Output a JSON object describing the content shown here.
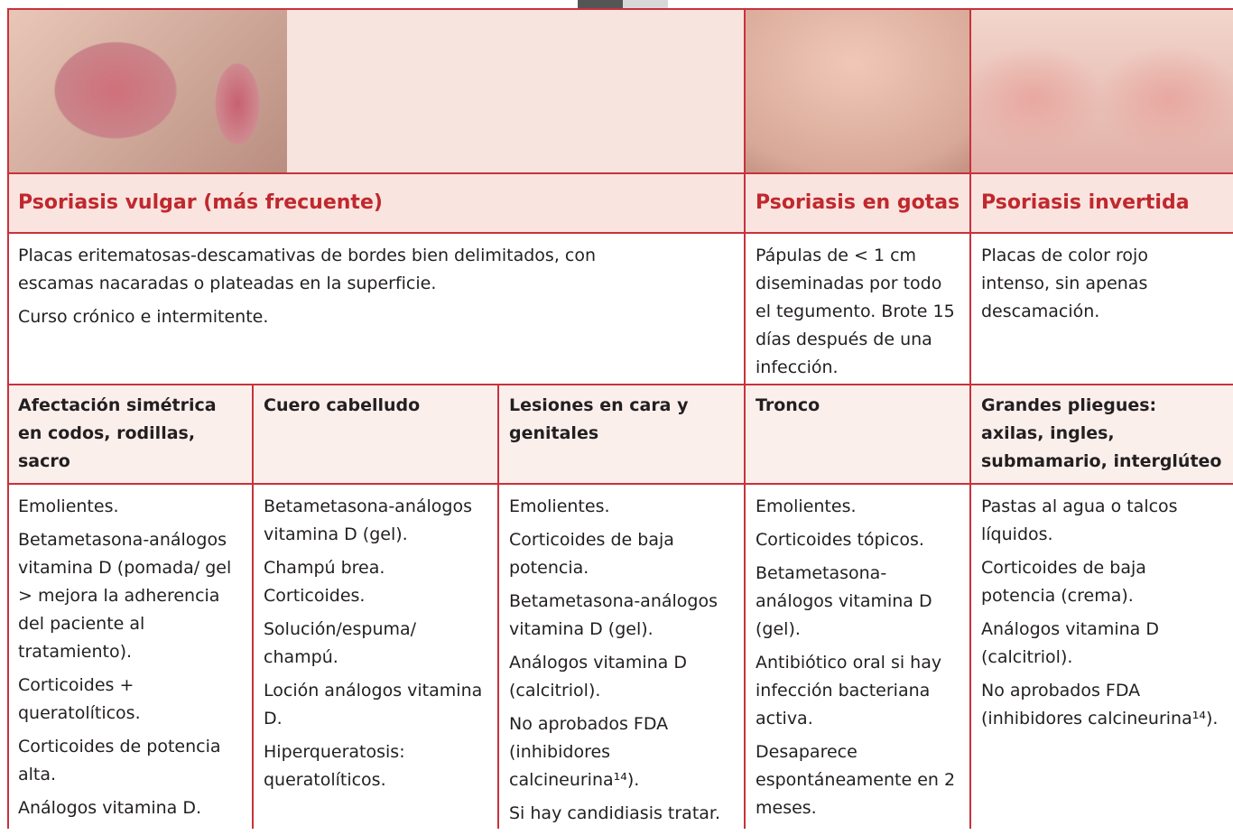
{
  "sections": [
    {
      "title": "Psoriasis vulgar (más frecuente)",
      "description": [
        "Placas eritematosas-descamativas de bordes bien delimitados, con escamas nacaradas o plateadas en la superficie.",
        "Curso crónico e intermitente."
      ]
    },
    {
      "title": "Psoriasis en gotas",
      "description": [
        "Pápulas de < 1 cm diseminadas por todo el tegumento. Brote 15 días después de una infección."
      ]
    },
    {
      "title": "Psoriasis invertida",
      "description": [
        "Placas de color rojo intenso, sin apenas descamación."
      ]
    }
  ],
  "columns": [
    {
      "heading": "Afectación simétrica en codos, rodillas, sacro",
      "treatments": [
        "Emolientes.",
        "Betametasona-análogos vitamina D (pomada/ gel > mejora la adherencia del paciente al tratamiento).",
        "Corticoides + queratolíticos.",
        "Corticoides de potencia alta.",
        "Análogos vitamina D."
      ]
    },
    {
      "heading": "Cuero cabelludo",
      "treatments": [
        "Betametasona-análogos vitamina D (gel).",
        "Champú brea. Corticoides.",
        "Solución/espuma/ champú.",
        "Loción análogos vitamina D.",
        "Hiperqueratosis: queratolíticos."
      ]
    },
    {
      "heading": "Lesiones en cara y genitales",
      "treatments": [
        "Emolientes.",
        "Corticoides de baja potencia.",
        "Betametasona-análogos vitamina D (gel).",
        "Análogos vitamina D (calcitriol).",
        "No aprobados FDA (inhibidores calcineurina¹⁴).",
        "Si hay candidiasis tratar."
      ]
    },
    {
      "heading": "Tronco",
      "treatments": [
        "Emolientes.",
        "Corticoides tópicos.",
        "Betametasona-análogos vitamina D (gel).",
        "Antibiótico oral si hay infección bacteriana activa.",
        "Desaparece espontáneamente en 2 meses."
      ]
    },
    {
      "heading": "Grandes pliegues: axilas, ingles, submamario, interglúteo",
      "treatments": [
        "Pastas al agua o talcos líquidos.",
        "Corticoides de baja potencia (crema).",
        "Análogos vitamina D (calcitriol).",
        "No aprobados FDA (inhibidores calcineurina¹⁴)."
      ]
    }
  ]
}
